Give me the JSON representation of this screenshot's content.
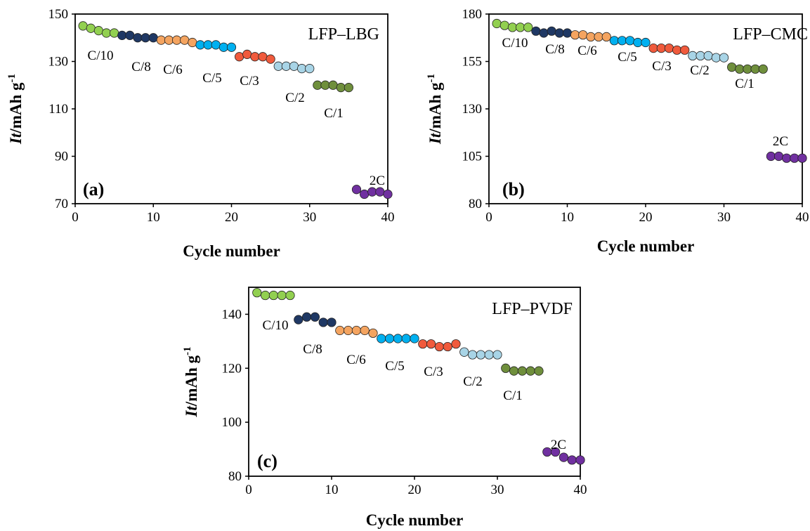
{
  "colors": {
    "C/10": "#92d050",
    "C/8": "#1f3864",
    "C/6": "#f4a460",
    "C/5": "#00b0f0",
    "C/3": "#f05a3c",
    "C/2": "#a8d4e6",
    "C/1": "#6f8f3c",
    "2C": "#7030a0"
  },
  "chart_data": [
    {
      "type": "scatter",
      "title": "LFP–LBG",
      "panel_label": "(a)",
      "xlabel": "Cycle number",
      "ylabel_main": "It/mAh g",
      "ylabel_sup": "-1",
      "xlim": [
        0,
        40
      ],
      "ylim": [
        70,
        150
      ],
      "xticks": [
        0,
        10,
        20,
        30,
        40
      ],
      "yticks": [
        70,
        90,
        110,
        130,
        150
      ],
      "series": [
        {
          "name": "C/10",
          "x": [
            1,
            2,
            3,
            4,
            5
          ],
          "y": [
            145,
            144,
            143,
            142,
            142
          ]
        },
        {
          "name": "C/8",
          "x": [
            6,
            7,
            8,
            9,
            10
          ],
          "y": [
            141,
            141,
            140,
            140,
            140
          ]
        },
        {
          "name": "C/6",
          "x": [
            11,
            12,
            13,
            14,
            15
          ],
          "y": [
            139,
            139,
            139,
            139,
            138
          ]
        },
        {
          "name": "C/5",
          "x": [
            16,
            17,
            18,
            19,
            20
          ],
          "y": [
            137,
            137,
            137,
            136,
            136
          ]
        },
        {
          "name": "C/3",
          "x": [
            21,
            22,
            23,
            24,
            25
          ],
          "y": [
            132,
            133,
            132,
            132,
            131
          ]
        },
        {
          "name": "C/2",
          "x": [
            26,
            27,
            28,
            29,
            30
          ],
          "y": [
            128,
            128,
            128,
            127,
            127
          ]
        },
        {
          "name": "C/1",
          "x": [
            31,
            32,
            33,
            34,
            35
          ],
          "y": [
            120,
            120,
            120,
            119,
            119
          ]
        },
        {
          "name": "2C",
          "x": [
            36,
            37,
            38,
            39,
            40
          ],
          "y": [
            76,
            74,
            75,
            75,
            74
          ]
        }
      ]
    },
    {
      "type": "scatter",
      "title": "LFP–CMC",
      "panel_label": "(b)",
      "xlabel": "Cycle number",
      "ylabel_main": "It/mAh g",
      "ylabel_sup": "-1",
      "xlim": [
        0,
        40
      ],
      "ylim": [
        80,
        180
      ],
      "xticks": [
        0,
        10,
        20,
        30,
        40
      ],
      "yticks": [
        80,
        105,
        130,
        155,
        180
      ],
      "series": [
        {
          "name": "C/10",
          "x": [
            1,
            2,
            3,
            4,
            5
          ],
          "y": [
            175,
            174,
            173,
            173,
            173
          ]
        },
        {
          "name": "C/8",
          "x": [
            6,
            7,
            8,
            9,
            10
          ],
          "y": [
            171,
            170,
            171,
            170,
            170
          ]
        },
        {
          "name": "C/6",
          "x": [
            11,
            12,
            13,
            14,
            15
          ],
          "y": [
            169,
            169,
            168,
            168,
            168
          ]
        },
        {
          "name": "C/5",
          "x": [
            16,
            17,
            18,
            19,
            20
          ],
          "y": [
            166,
            166,
            166,
            165,
            165
          ]
        },
        {
          "name": "C/3",
          "x": [
            21,
            22,
            23,
            24,
            25
          ],
          "y": [
            162,
            162,
            162,
            161,
            161
          ]
        },
        {
          "name": "C/2",
          "x": [
            26,
            27,
            28,
            29,
            30
          ],
          "y": [
            158,
            158,
            158,
            157,
            157
          ]
        },
        {
          "name": "C/1",
          "x": [
            31,
            32,
            33,
            34,
            35
          ],
          "y": [
            152,
            151,
            151,
            151,
            151
          ]
        },
        {
          "name": "2C",
          "x": [
            36,
            37,
            38,
            39,
            40
          ],
          "y": [
            105,
            105,
            104,
            104,
            104
          ]
        }
      ]
    },
    {
      "type": "scatter",
      "title": "LFP–PVDF",
      "panel_label": "(c)",
      "xlabel": "Cycle number",
      "ylabel_main": "It/mAh g",
      "ylabel_sup": "-1",
      "xlim": [
        0,
        40
      ],
      "ylim": [
        80,
        150
      ],
      "xticks": [
        0,
        10,
        20,
        30,
        40
      ],
      "yticks": [
        80,
        100,
        120,
        140
      ],
      "series": [
        {
          "name": "C/10",
          "x": [
            1,
            2,
            3,
            4,
            5
          ],
          "y": [
            148,
            147,
            147,
            147,
            147
          ]
        },
        {
          "name": "C/8",
          "x": [
            6,
            7,
            8,
            9,
            10
          ],
          "y": [
            138,
            139,
            139,
            137,
            137
          ]
        },
        {
          "name": "C/6",
          "x": [
            11,
            12,
            13,
            14,
            15
          ],
          "y": [
            134,
            134,
            134,
            134,
            133
          ]
        },
        {
          "name": "C/5",
          "x": [
            16,
            17,
            18,
            19,
            20
          ],
          "y": [
            131,
            131,
            131,
            131,
            131
          ]
        },
        {
          "name": "C/3",
          "x": [
            21,
            22,
            23,
            24,
            25
          ],
          "y": [
            129,
            129,
            128,
            128,
            129
          ]
        },
        {
          "name": "C/2",
          "x": [
            26,
            27,
            28,
            29,
            30
          ],
          "y": [
            126,
            125,
            125,
            125,
            125
          ]
        },
        {
          "name": "C/1",
          "x": [
            31,
            32,
            33,
            34,
            35
          ],
          "y": [
            120,
            119,
            119,
            119,
            119
          ]
        },
        {
          "name": "2C",
          "x": [
            36,
            37,
            38,
            39,
            40
          ],
          "y": [
            89,
            89,
            87,
            86,
            86
          ]
        }
      ]
    }
  ]
}
